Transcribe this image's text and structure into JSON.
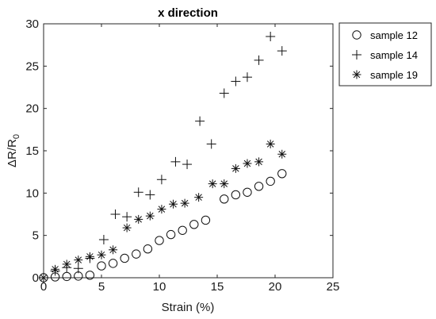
{
  "chart_data": {
    "type": "scatter",
    "title": "x direction",
    "xlabel": "Strain (%)",
    "ylabel_main": "ΔR/R",
    "ylabel_sub": "0",
    "xlim": [
      0,
      25
    ],
    "ylim": [
      0,
      30
    ],
    "xticks": [
      "0",
      "5",
      "10",
      "15",
      "20",
      "25"
    ],
    "yticks": [
      "0",
      "5",
      "10",
      "15",
      "20",
      "25",
      "30"
    ],
    "grid": false,
    "legend_position": "outside-top-right",
    "series": [
      {
        "name": "sample 12",
        "marker": "circle",
        "x": [
          0,
          1,
          2,
          3,
          4,
          5,
          6,
          7,
          8,
          9,
          10,
          11,
          12,
          13,
          14,
          15.6,
          16.6,
          17.6,
          18.6,
          19.6,
          20.6
        ],
        "y": [
          0,
          0.1,
          0.15,
          0.2,
          0.3,
          1.4,
          1.7,
          2.3,
          2.8,
          3.4,
          4.4,
          5.1,
          5.6,
          6.3,
          6.8,
          9.3,
          9.8,
          10.1,
          10.8,
          11.4,
          12.3
        ]
      },
      {
        "name": "sample 14",
        "marker": "plus",
        "x": [
          0,
          1,
          2,
          3,
          4,
          5.2,
          6.2,
          7.2,
          8.2,
          9.2,
          10.2,
          11.4,
          12.4,
          13.5,
          14.5,
          15.6,
          16.6,
          17.6,
          18.6,
          19.6,
          20.6
        ],
        "y": [
          0,
          0.8,
          1.2,
          1.1,
          2.3,
          4.5,
          7.5,
          7.2,
          10.1,
          9.8,
          11.6,
          13.7,
          13.4,
          18.5,
          15.8,
          21.8,
          23.2,
          23.7,
          25.7,
          28.5,
          26.8
        ]
      },
      {
        "name": "sample 19",
        "marker": "asterisk",
        "x": [
          0,
          1,
          2,
          3,
          4,
          5,
          6,
          7.2,
          8.2,
          9.2,
          10.2,
          11.2,
          12.2,
          13.4,
          14.6,
          15.6,
          16.6,
          17.6,
          18.6,
          19.6,
          20.6
        ],
        "y": [
          0,
          1.0,
          1.6,
          2.1,
          2.5,
          2.7,
          3.3,
          5.9,
          6.9,
          7.3,
          8.1,
          8.7,
          8.8,
          9.5,
          11.1,
          11.1,
          12.9,
          13.5,
          13.7,
          15.8,
          14.6
        ]
      }
    ]
  }
}
